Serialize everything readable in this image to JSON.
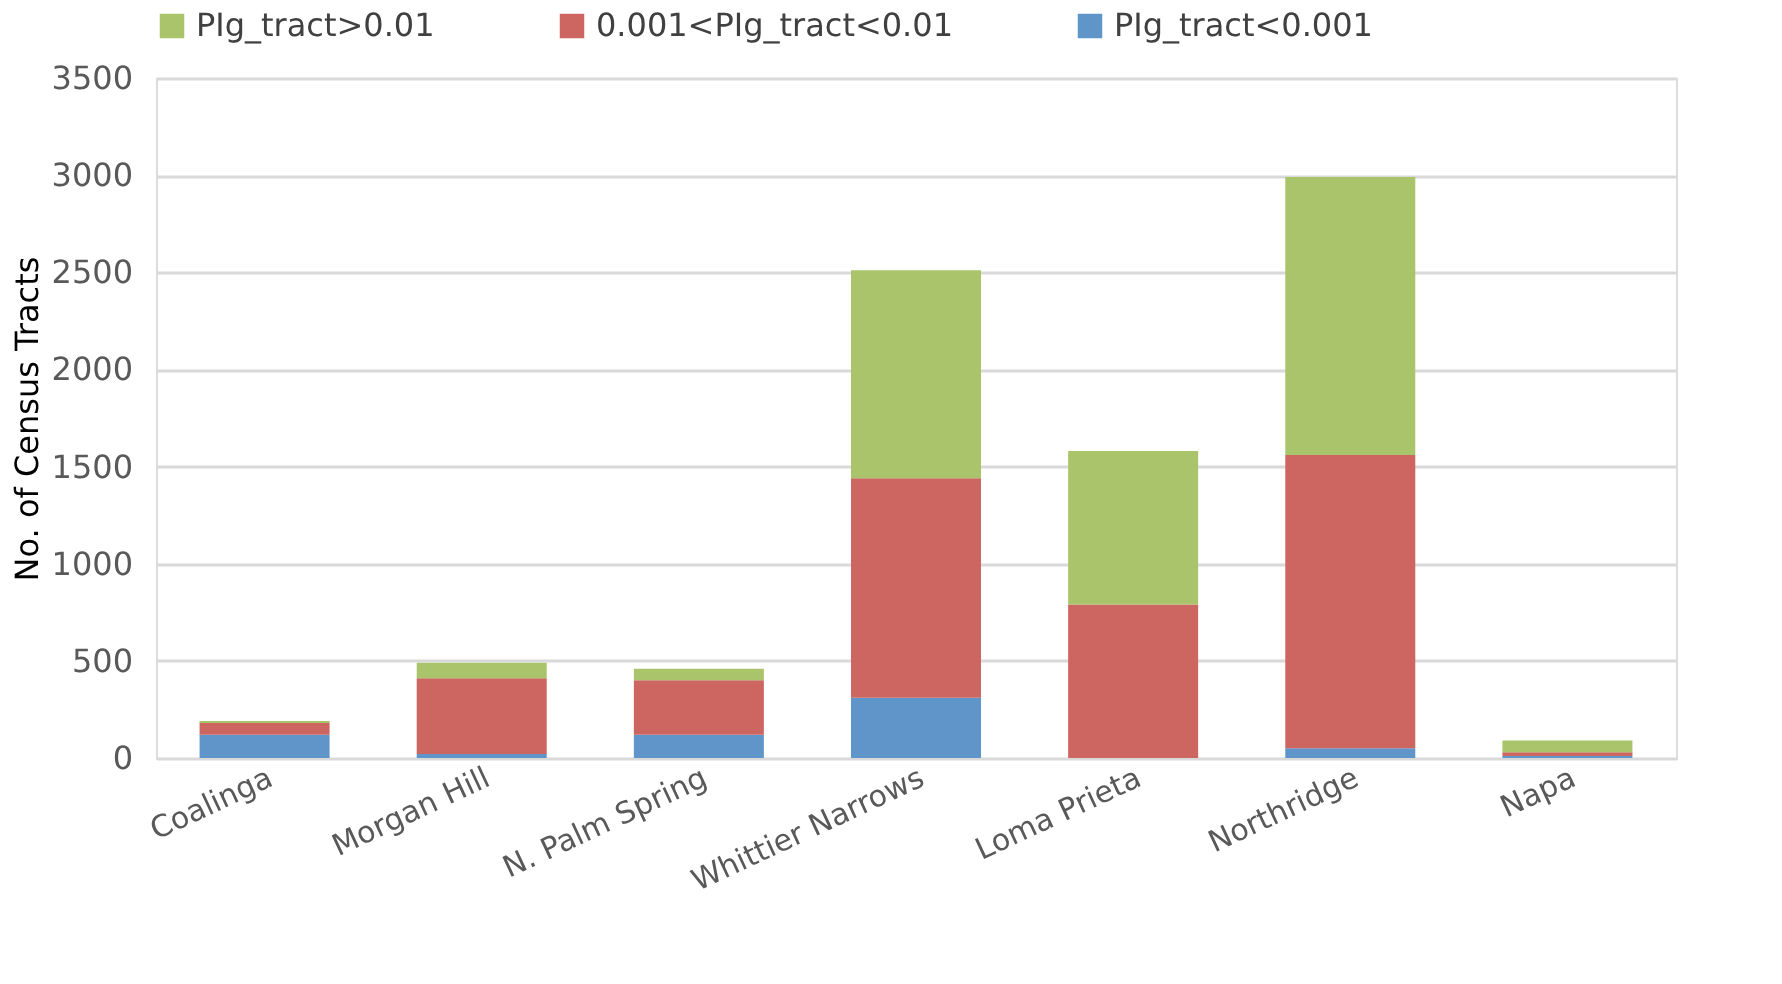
{
  "chart_data": {
    "type": "bar",
    "stacked": true,
    "ylabel": "No. of Census Tracts",
    "categories": [
      "Coalinga",
      "Morgan Hill",
      "N. Palm Spring",
      "Whittier Narrows",
      "Loma Prieta",
      "Northridge",
      "Napa"
    ],
    "series": [
      {
        "name": "PIg_tract<0.001",
        "color": "#5f95c9",
        "values": [
          120,
          20,
          120,
          310,
          0,
          50,
          10
        ]
      },
      {
        "name": "0.001<PIg_tract<0.01",
        "color": "#cd6560",
        "values": [
          60,
          390,
          280,
          1130,
          790,
          1510,
          20
        ]
      },
      {
        "name": "PIg_tract>0.01",
        "color": "#a9c46a",
        "values": [
          10,
          80,
          60,
          1070,
          790,
          1430,
          60
        ]
      }
    ],
    "ylim": [
      0,
      3500
    ],
    "yticks": [
      0,
      500,
      1000,
      1500,
      2000,
      2500,
      3000,
      3500
    ],
    "grid": "y",
    "legend": "top"
  }
}
